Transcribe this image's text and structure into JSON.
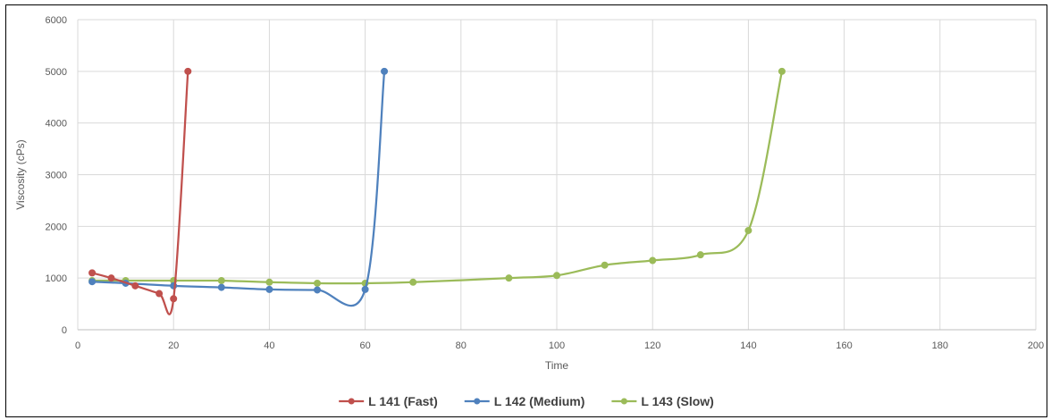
{
  "chart_data": {
    "type": "line",
    "title": "",
    "xlabel": "Time",
    "ylabel": "Viscosity (cPs)",
    "xlim": [
      0,
      200
    ],
    "ylim": [
      0,
      6000
    ],
    "xticks": [
      0,
      20,
      40,
      60,
      80,
      100,
      120,
      140,
      160,
      180,
      200
    ],
    "yticks": [
      0,
      1000,
      2000,
      3000,
      4000,
      5000,
      6000
    ],
    "grid": true,
    "legend_position": "bottom",
    "smooth": true,
    "series": [
      {
        "name": "L 141 (Fast)",
        "color": "#C0504D",
        "points": [
          [
            3,
            1100
          ],
          [
            7,
            1000
          ],
          [
            12,
            850
          ],
          [
            17,
            700
          ],
          [
            20,
            600
          ],
          [
            23,
            5000
          ]
        ]
      },
      {
        "name": "L 142 (Medium)",
        "color": "#4F81BD",
        "points": [
          [
            3,
            930
          ],
          [
            10,
            900
          ],
          [
            20,
            850
          ],
          [
            30,
            820
          ],
          [
            40,
            780
          ],
          [
            50,
            770
          ],
          [
            60,
            780
          ],
          [
            64,
            5000
          ]
        ]
      },
      {
        "name": "L 143 (Slow)",
        "color": "#9BBB59",
        "points": [
          [
            3,
            950
          ],
          [
            10,
            950
          ],
          [
            20,
            950
          ],
          [
            30,
            950
          ],
          [
            40,
            920
          ],
          [
            50,
            900
          ],
          [
            60,
            900
          ],
          [
            70,
            920
          ],
          [
            90,
            1000
          ],
          [
            100,
            1050
          ],
          [
            110,
            1250
          ],
          [
            120,
            1340
          ],
          [
            130,
            1450
          ],
          [
            140,
            1920
          ],
          [
            147,
            5000
          ]
        ]
      }
    ]
  }
}
